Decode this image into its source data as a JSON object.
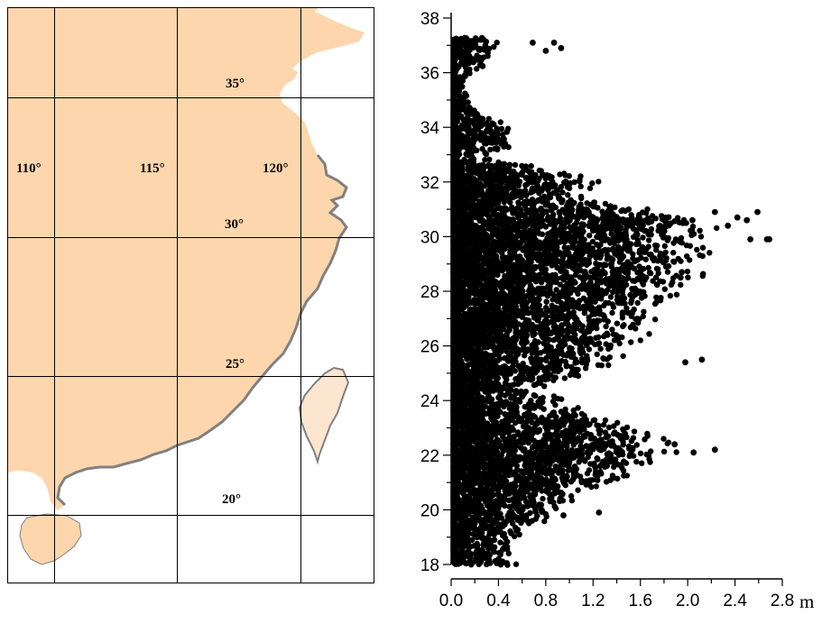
{
  "colors": {
    "land": "#fdd6ad",
    "coast": "#808080",
    "taiwan": "#fde6cf",
    "sea": "#ffffff",
    "grid": "#000000",
    "points": "#000000"
  },
  "map": {
    "longitude_labels": [
      "110°",
      "115°",
      "120°"
    ],
    "latitude_labels": [
      "35°",
      "30°",
      "25°",
      "20°"
    ]
  },
  "chart_data": {
    "type": "scatter",
    "orientation": "horizontal-values",
    "title": "",
    "x_unit": "m",
    "xlim": [
      0,
      2.8
    ],
    "ylim": [
      18,
      38
    ],
    "x_ticks": [
      "0.0",
      "0.4",
      "0.8",
      "1.2",
      "1.6",
      "2.0",
      "2.4",
      "2.8"
    ],
    "y_ticks": [
      "18",
      "20",
      "22",
      "24",
      "26",
      "28",
      "30",
      "32",
      "34",
      "36",
      "38"
    ],
    "grid": false,
    "series": [
      {
        "envelope": [
          [
            18.0,
            0.55
          ],
          [
            18.5,
            0.45
          ],
          [
            19.0,
            0.5
          ],
          [
            19.5,
            0.7
          ],
          [
            20.0,
            0.9
          ],
          [
            20.5,
            1.0
          ],
          [
            21.0,
            1.3
          ],
          [
            21.5,
            1.5
          ],
          [
            22.0,
            1.7
          ],
          [
            22.5,
            1.7
          ],
          [
            23.0,
            1.5
          ],
          [
            23.5,
            1.1
          ],
          [
            24.0,
            0.9
          ],
          [
            24.5,
            0.7
          ],
          [
            25.0,
            1.1
          ],
          [
            25.5,
            1.3
          ],
          [
            26.0,
            1.4
          ],
          [
            26.5,
            1.6
          ],
          [
            27.0,
            1.5
          ],
          [
            27.5,
            1.6
          ],
          [
            28.0,
            1.8
          ],
          [
            28.5,
            1.9
          ],
          [
            29.0,
            1.9
          ],
          [
            29.5,
            2.0
          ],
          [
            30.0,
            2.0
          ],
          [
            30.5,
            2.1
          ],
          [
            31.0,
            1.5
          ],
          [
            31.5,
            1.0
          ],
          [
            32.0,
            1.2
          ],
          [
            32.5,
            0.8
          ],
          [
            32.9,
            0.2
          ],
          [
            33.3,
            0.5
          ],
          [
            33.8,
            0.5
          ],
          [
            34.2,
            0.4
          ],
          [
            34.8,
            0.2
          ],
          [
            35.5,
            0.1
          ],
          [
            36.0,
            0.2
          ],
          [
            36.5,
            0.35
          ],
          [
            37.0,
            0.4
          ],
          [
            37.3,
            0.35
          ]
        ],
        "outliers": [
          [
            37.1,
            0.69
          ],
          [
            37.1,
            0.87
          ],
          [
            36.9,
            0.93
          ],
          [
            36.8,
            0.8
          ],
          [
            30.9,
            2.23
          ],
          [
            30.7,
            2.42
          ],
          [
            30.6,
            2.5
          ],
          [
            30.9,
            2.59
          ],
          [
            30.4,
            2.34
          ],
          [
            29.9,
            2.67
          ],
          [
            29.9,
            2.69
          ],
          [
            29.9,
            2.53
          ],
          [
            30.6,
            2.04
          ],
          [
            30.5,
            1.96
          ],
          [
            28.7,
            1.95
          ],
          [
            28.5,
            1.94
          ],
          [
            25.5,
            2.12
          ],
          [
            25.4,
            1.98
          ],
          [
            22.2,
            2.23
          ],
          [
            22.1,
            2.05
          ],
          [
            22.4,
            1.89
          ],
          [
            19.9,
            1.25
          ],
          [
            19.8,
            0.95
          ]
        ]
      }
    ]
  }
}
